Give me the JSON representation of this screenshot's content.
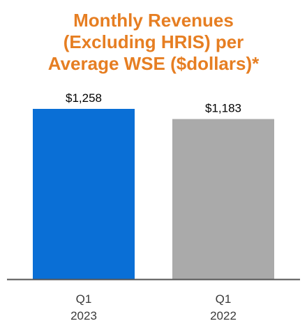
{
  "colors": {
    "title": "#E67E22",
    "axis": "#555555",
    "label": "#000000"
  },
  "chart_data": {
    "type": "bar",
    "title_lines": [
      "Monthly Revenues",
      "(Excluding HRIS) per",
      "Average WSE ($dollars)*"
    ],
    "categories": [
      {
        "line1": "Q1",
        "line2": "2023"
      },
      {
        "line1": "Q1",
        "line2": "2022"
      }
    ],
    "values": [
      1258,
      1183
    ],
    "value_labels": [
      "$1,258",
      "$1,183"
    ],
    "bar_colors": [
      "#0A6FD6",
      "#AAAAAA"
    ],
    "ylim": [
      0,
      1258
    ],
    "legend": "none",
    "grid": false
  }
}
